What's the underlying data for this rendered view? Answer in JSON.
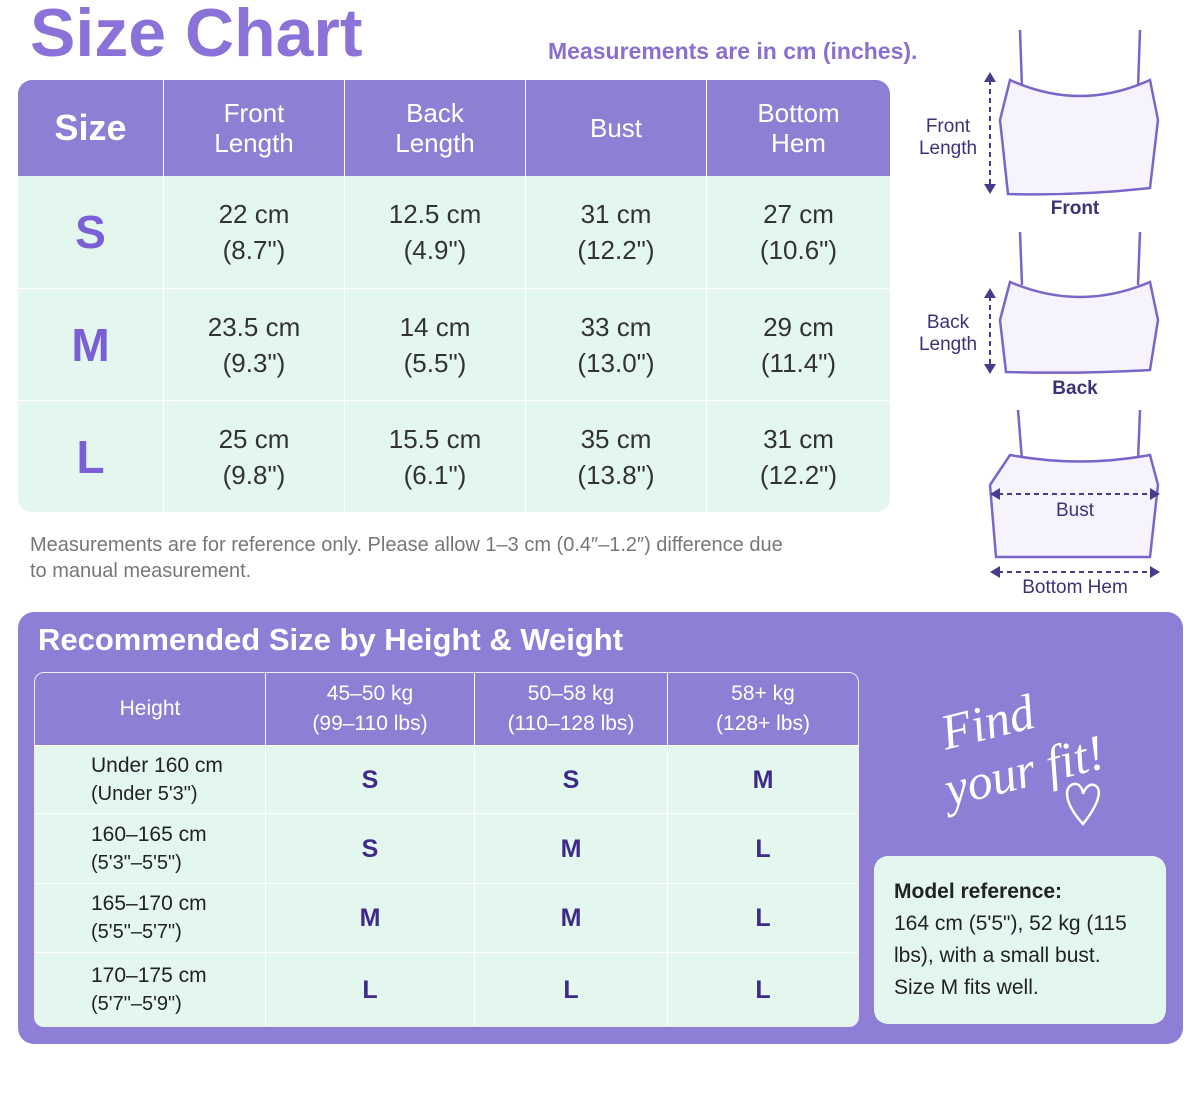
{
  "title": "Size Chart",
  "units_note": "Measurements are in cm (inches).",
  "size_chart": {
    "headers": [
      "Size",
      "Front Length",
      "Back Length",
      "Bust",
      "Bottom Hem"
    ],
    "rows": [
      {
        "size": "S",
        "cells": [
          [
            "22 cm",
            "(8.7\")"
          ],
          [
            "12.5 cm",
            "(4.9\")"
          ],
          [
            "31 cm",
            "(12.2\")"
          ],
          [
            "27 cm",
            "(10.6\")"
          ]
        ]
      },
      {
        "size": "M",
        "cells": [
          [
            "23.5 cm",
            "(9.3\")"
          ],
          [
            "14 cm",
            "(5.5\")"
          ],
          [
            "33 cm",
            "(13.0\")"
          ],
          [
            "29 cm",
            "(11.4\")"
          ]
        ]
      },
      {
        "size": "L",
        "cells": [
          [
            "25 cm",
            "(9.8\")"
          ],
          [
            "15.5 cm",
            "(6.1\")"
          ],
          [
            "35 cm",
            "(13.8\")"
          ],
          [
            "31 cm",
            "(12.2\")"
          ]
        ]
      }
    ]
  },
  "disclaimer": "Measurements are for reference only. Please allow 1–3 cm (0.4″–1.2″) difference due to manual measurement.",
  "diagram": {
    "front": {
      "measure": "Front Length",
      "label": "Front"
    },
    "back": {
      "measure": "Back Length",
      "label": "Back"
    },
    "bust": "Bust",
    "hem": "Bottom Hem"
  },
  "recommend": {
    "title": "Recommended Size by Height & Weight",
    "headers": {
      "height": "Height",
      "weights": [
        [
          "45–50 kg",
          "(99–110 lbs)"
        ],
        [
          "50–58 kg",
          "(110–128 lbs)"
        ],
        [
          "58+ kg",
          "(128+ lbs)"
        ]
      ]
    },
    "rows": [
      {
        "height": [
          "Under 160 cm",
          "(Under 5'3\")"
        ],
        "sizes": [
          "S",
          "S",
          "M"
        ]
      },
      {
        "height": [
          "160–165 cm",
          "(5'3\"–5'5\")"
        ],
        "sizes": [
          "S",
          "M",
          "L"
        ]
      },
      {
        "height": [
          "165–170 cm",
          "(5'5\"–5'7\")"
        ],
        "sizes": [
          "M",
          "M",
          "L"
        ]
      },
      {
        "height": [
          "170–175 cm",
          "(5'7\"–5'9\")"
        ],
        "sizes": [
          "L",
          "L",
          "L"
        ]
      }
    ]
  },
  "slogan": [
    "Find",
    "your fit!"
  ],
  "model": {
    "label": "Model reference:",
    "text": "164 cm (5'5\"), 52 kg (115 lbs), with a small bust. Size M fits well."
  }
}
